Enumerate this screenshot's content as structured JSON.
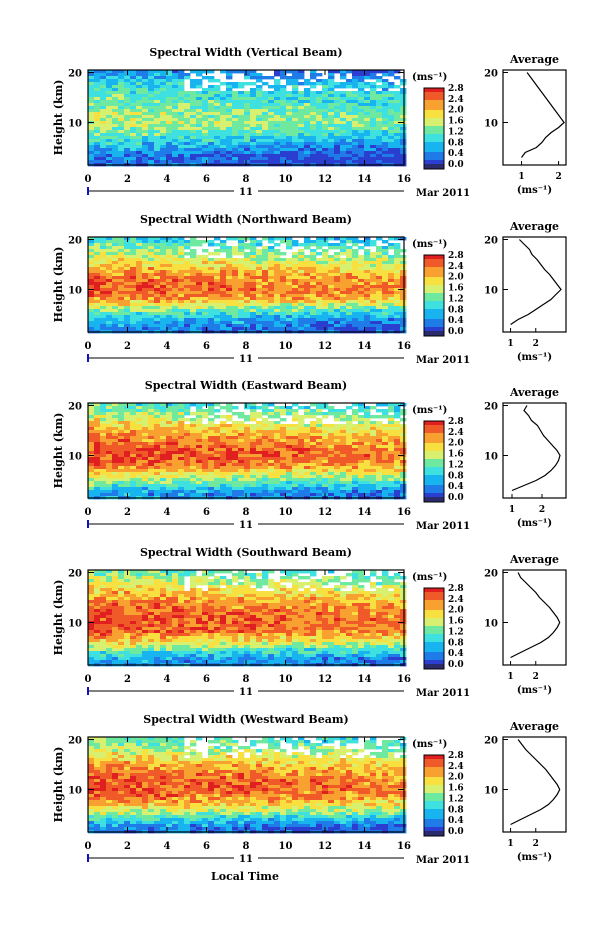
{
  "figure": {
    "xlabel_global": "Local Time",
    "colorbar_unit": "(ms⁻¹)",
    "colorbar_ticks": [
      "0.0",
      "0.4",
      "0.8",
      "1.2",
      "1.6",
      "2.0",
      "2.4",
      "2.8"
    ],
    "avg_title": "Average",
    "avg_xlabel": "(ms⁻¹)",
    "date_day": "11",
    "date_label": "Mar 2011",
    "x_ticks": [
      "0",
      "2",
      "4",
      "6",
      "8",
      "10",
      "12",
      "14",
      "16"
    ],
    "y_ticks": [
      "20",
      "10"
    ],
    "ylabel": "Height (km)"
  },
  "colors": {
    "colormap": [
      "#2b2b6b",
      "#2a3fd0",
      "#1f7be8",
      "#18b4f0",
      "#3fe0e0",
      "#6fe8a0",
      "#d8f070",
      "#f8e040",
      "#f8a030",
      "#f05a28",
      "#e02020"
    ]
  },
  "chart_data": [
    {
      "type": "heatmap",
      "title": "Spectral Width (Vertical Beam)",
      "xlabel": "Local Time",
      "ylabel": "Height (km)",
      "xlim": [
        0,
        16
      ],
      "ylim": [
        1.5,
        20.5
      ],
      "clim": [
        0.0,
        2.8
      ],
      "profile": [
        [
          2.5,
          0.1
        ],
        [
          4,
          0.3
        ],
        [
          6,
          0.7
        ],
        [
          8,
          1.1
        ],
        [
          10,
          1.4
        ],
        [
          12,
          1.3
        ],
        [
          14,
          1.1
        ],
        [
          16,
          0.95
        ],
        [
          18,
          0.75
        ],
        [
          20,
          0.35
        ]
      ],
      "average": {
        "xlim": [
          0.5,
          2.2
        ],
        "x_ticks": [
          "1",
          "2"
        ],
        "points": [
          [
            1.0,
            3.0
          ],
          [
            1.1,
            4.0
          ],
          [
            1.4,
            5.0
          ],
          [
            1.55,
            6.0
          ],
          [
            1.65,
            7.0
          ],
          [
            1.8,
            8.0
          ],
          [
            2.0,
            9.0
          ],
          [
            2.15,
            10.0
          ],
          [
            2.05,
            11.0
          ],
          [
            1.95,
            12.0
          ],
          [
            1.85,
            13.0
          ],
          [
            1.75,
            14.0
          ],
          [
            1.65,
            15.0
          ],
          [
            1.55,
            16.0
          ],
          [
            1.45,
            17.0
          ],
          [
            1.35,
            18.0
          ],
          [
            1.25,
            19.0
          ],
          [
            1.15,
            20.0
          ]
        ]
      }
    },
    {
      "type": "heatmap",
      "title": "Spectral Width (Northward Beam)",
      "xlabel": "Local Time",
      "ylabel": "Height (km)",
      "xlim": [
        0,
        16
      ],
      "ylim": [
        1.5,
        20.5
      ],
      "clim": [
        0.0,
        2.8
      ],
      "profile": [
        [
          2.5,
          0.3
        ],
        [
          4,
          0.6
        ],
        [
          6,
          1.2
        ],
        [
          8,
          2.1
        ],
        [
          10,
          2.4
        ],
        [
          12,
          2.3
        ],
        [
          14,
          2.0
        ],
        [
          16,
          1.6
        ],
        [
          18,
          1.2
        ],
        [
          20,
          0.8
        ]
      ],
      "average": {
        "xlim": [
          0.7,
          3.2
        ],
        "x_ticks": [
          "1",
          "2"
        ],
        "points": [
          [
            1.0,
            3.0
          ],
          [
            1.3,
            4.0
          ],
          [
            1.7,
            5.0
          ],
          [
            2.0,
            6.0
          ],
          [
            2.3,
            7.0
          ],
          [
            2.6,
            8.0
          ],
          [
            2.8,
            9.0
          ],
          [
            3.0,
            10.0
          ],
          [
            2.85,
            11.0
          ],
          [
            2.7,
            12.0
          ],
          [
            2.55,
            13.0
          ],
          [
            2.35,
            14.0
          ],
          [
            2.2,
            15.0
          ],
          [
            2.05,
            16.0
          ],
          [
            1.85,
            17.0
          ],
          [
            1.75,
            18.0
          ],
          [
            1.55,
            19.0
          ],
          [
            1.35,
            20.0
          ]
        ]
      }
    },
    {
      "type": "heatmap",
      "title": "Spectral Width (Eastward Beam)",
      "xlabel": "Local Time",
      "ylabel": "Height (km)",
      "xlim": [
        0,
        16
      ],
      "ylim": [
        1.5,
        20.5
      ],
      "clim": [
        0.0,
        2.8
      ],
      "profile": [
        [
          2.5,
          0.4
        ],
        [
          4,
          0.9
        ],
        [
          6,
          1.6
        ],
        [
          8,
          2.3
        ],
        [
          10,
          2.5
        ],
        [
          12,
          2.4
        ],
        [
          14,
          2.1
        ],
        [
          16,
          1.8
        ],
        [
          18,
          1.4
        ],
        [
          20,
          1.0
        ]
      ],
      "average": {
        "xlim": [
          0.7,
          2.8
        ],
        "x_ticks": [
          "1",
          "2"
        ],
        "points": [
          [
            1.0,
            3.0
          ],
          [
            1.4,
            4.0
          ],
          [
            1.8,
            5.0
          ],
          [
            2.1,
            6.0
          ],
          [
            2.3,
            7.0
          ],
          [
            2.45,
            8.0
          ],
          [
            2.55,
            9.0
          ],
          [
            2.6,
            10.0
          ],
          [
            2.5,
            11.0
          ],
          [
            2.35,
            12.0
          ],
          [
            2.2,
            13.0
          ],
          [
            2.05,
            14.0
          ],
          [
            1.95,
            15.0
          ],
          [
            1.85,
            16.0
          ],
          [
            1.65,
            17.0
          ],
          [
            1.55,
            18.0
          ],
          [
            1.4,
            19.0
          ],
          [
            1.5,
            20.0
          ]
        ]
      }
    },
    {
      "type": "heatmap",
      "title": "Spectral Width (Southward Beam)",
      "xlabel": "Local Time",
      "ylabel": "Height (km)",
      "xlim": [
        0,
        16
      ],
      "ylim": [
        1.5,
        20.5
      ],
      "clim": [
        0.0,
        2.8
      ],
      "profile": [
        [
          2.5,
          0.4
        ],
        [
          4,
          0.9
        ],
        [
          6,
          1.7
        ],
        [
          8,
          2.3
        ],
        [
          10,
          2.5
        ],
        [
          12,
          2.4
        ],
        [
          14,
          2.2
        ],
        [
          16,
          1.9
        ],
        [
          18,
          1.5
        ],
        [
          20,
          1.1
        ]
      ],
      "average": {
        "xlim": [
          0.7,
          3.2
        ],
        "x_ticks": [
          "1",
          "2"
        ],
        "points": [
          [
            1.0,
            3.0
          ],
          [
            1.4,
            4.0
          ],
          [
            1.8,
            5.0
          ],
          [
            2.2,
            6.0
          ],
          [
            2.5,
            7.0
          ],
          [
            2.7,
            8.0
          ],
          [
            2.85,
            9.0
          ],
          [
            2.95,
            10.0
          ],
          [
            2.85,
            11.0
          ],
          [
            2.7,
            12.0
          ],
          [
            2.55,
            13.0
          ],
          [
            2.35,
            14.0
          ],
          [
            2.15,
            15.0
          ],
          [
            2.0,
            16.0
          ],
          [
            1.8,
            17.0
          ],
          [
            1.6,
            18.0
          ],
          [
            1.4,
            19.0
          ],
          [
            1.3,
            20.0
          ]
        ]
      }
    },
    {
      "type": "heatmap",
      "title": "Spectral Width (Westward Beam)",
      "xlabel": "Local Time",
      "ylabel": "Height (km)",
      "xlim": [
        0,
        16
      ],
      "ylim": [
        1.5,
        20.5
      ],
      "clim": [
        0.0,
        2.8
      ],
      "profile": [
        [
          2.5,
          0.3
        ],
        [
          4,
          0.8
        ],
        [
          6,
          1.6
        ],
        [
          8,
          2.2
        ],
        [
          10,
          2.5
        ],
        [
          12,
          2.4
        ],
        [
          14,
          2.2
        ],
        [
          16,
          1.8
        ],
        [
          18,
          1.4
        ],
        [
          20,
          1.0
        ]
      ],
      "average": {
        "xlim": [
          0.7,
          3.2
        ],
        "x_ticks": [
          "1",
          "2"
        ],
        "points": [
          [
            1.0,
            3.0
          ],
          [
            1.4,
            4.0
          ],
          [
            1.8,
            5.0
          ],
          [
            2.2,
            6.0
          ],
          [
            2.5,
            7.0
          ],
          [
            2.7,
            8.0
          ],
          [
            2.85,
            9.0
          ],
          [
            2.95,
            10.0
          ],
          [
            2.85,
            11.0
          ],
          [
            2.7,
            12.0
          ],
          [
            2.55,
            13.0
          ],
          [
            2.4,
            14.0
          ],
          [
            2.2,
            15.0
          ],
          [
            2.0,
            16.0
          ],
          [
            1.8,
            17.0
          ],
          [
            1.6,
            18.0
          ],
          [
            1.45,
            19.0
          ],
          [
            1.3,
            20.0
          ]
        ]
      }
    }
  ]
}
